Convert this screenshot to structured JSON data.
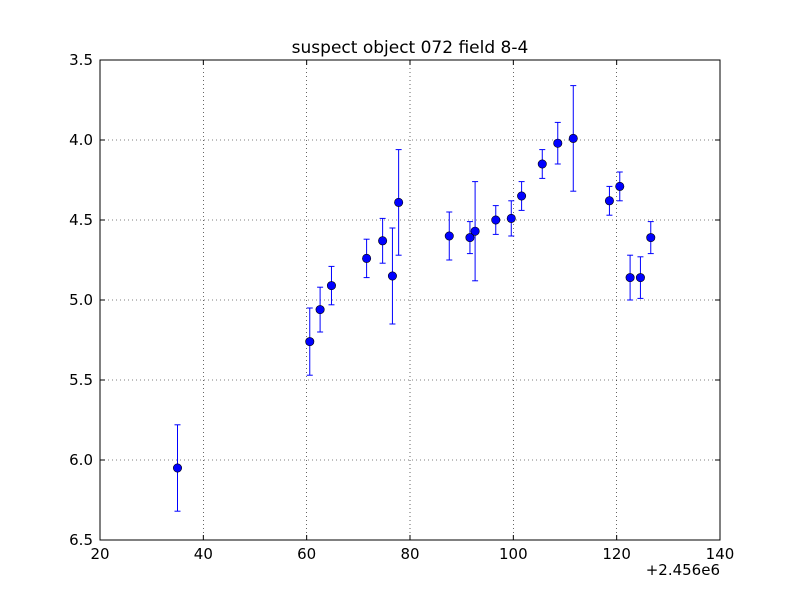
{
  "chart_data": {
    "type": "scatter",
    "title": "suspect object 072 field 8-4",
    "xlabel": "",
    "ylabel": "",
    "x_offset_label": "+2.456e6",
    "xlim": [
      20,
      140
    ],
    "ylim": [
      6.5,
      3.5
    ],
    "y_inverted": true,
    "grid": true,
    "x_ticks": [
      "20",
      "40",
      "60",
      "80",
      "100",
      "120",
      "140"
    ],
    "y_ticks": [
      "3.5",
      "4.0",
      "4.5",
      "5.0",
      "5.5",
      "6.0",
      "6.5"
    ],
    "marker_color": "#0000ff",
    "error_bar_color": "#0000ff",
    "series": [
      {
        "points": [
          {
            "x": 35.0,
            "y": 6.05,
            "err": 0.27
          },
          {
            "x": 60.6,
            "y": 5.26,
            "err": 0.21
          },
          {
            "x": 62.6,
            "y": 5.06,
            "err": 0.14
          },
          {
            "x": 64.8,
            "y": 4.91,
            "err": 0.12
          },
          {
            "x": 71.6,
            "y": 4.74,
            "err": 0.12
          },
          {
            "x": 74.7,
            "y": 4.63,
            "err": 0.14
          },
          {
            "x": 76.6,
            "y": 4.85,
            "err": 0.3
          },
          {
            "x": 77.8,
            "y": 4.39,
            "err": 0.33
          },
          {
            "x": 87.6,
            "y": 4.6,
            "err": 0.15
          },
          {
            "x": 91.6,
            "y": 4.61,
            "err": 0.1
          },
          {
            "x": 92.6,
            "y": 4.57,
            "err": 0.31
          },
          {
            "x": 96.6,
            "y": 4.5,
            "err": 0.09
          },
          {
            "x": 99.6,
            "y": 4.49,
            "err": 0.11
          },
          {
            "x": 101.6,
            "y": 4.35,
            "err": 0.09
          },
          {
            "x": 105.6,
            "y": 4.15,
            "err": 0.09
          },
          {
            "x": 108.6,
            "y": 4.02,
            "err": 0.13
          },
          {
            "x": 111.6,
            "y": 3.99,
            "err": 0.33
          },
          {
            "x": 118.6,
            "y": 4.38,
            "err": 0.09
          },
          {
            "x": 120.6,
            "y": 4.29,
            "err": 0.09
          },
          {
            "x": 122.6,
            "y": 4.86,
            "err": 0.14
          },
          {
            "x": 124.6,
            "y": 4.86,
            "err": 0.13
          },
          {
            "x": 126.6,
            "y": 4.61,
            "err": 0.1
          }
        ]
      }
    ]
  }
}
